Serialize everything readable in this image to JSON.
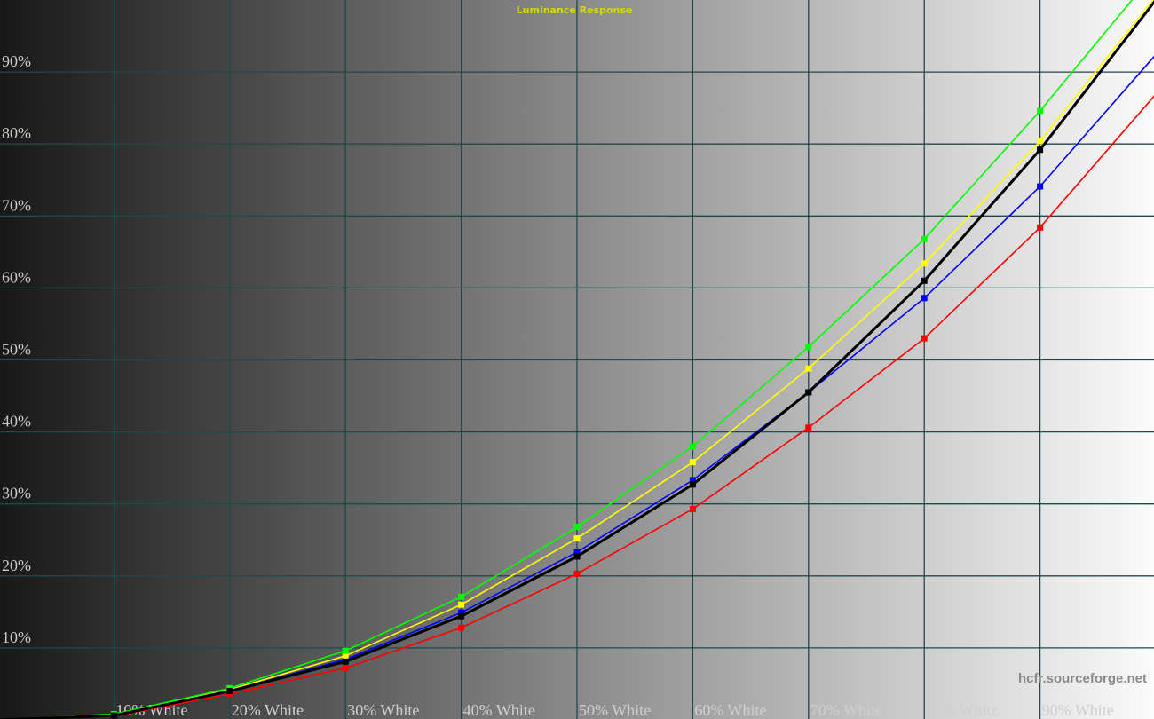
{
  "chart_data": {
    "type": "line",
    "title": "Luminance Response",
    "watermark": "hcfr.sourceforge.net",
    "x": [
      0,
      10,
      20,
      30,
      40,
      50,
      60,
      70,
      80,
      90,
      100
    ],
    "x_tick_labels": [
      "10% White",
      "20% White",
      "30% White",
      "40% White",
      "50% White",
      "60% White",
      "70% White",
      "80% White",
      "90% White"
    ],
    "x_tick_values": [
      10,
      20,
      30,
      40,
      50,
      60,
      70,
      80,
      90
    ],
    "y_tick_labels": [
      "10%",
      "20%",
      "30%",
      "40%",
      "50%",
      "60%",
      "70%",
      "80%",
      "90%"
    ],
    "y_tick_values": [
      10,
      20,
      30,
      40,
      50,
      60,
      70,
      80,
      90
    ],
    "xlim": [
      0,
      100
    ],
    "ylim": [
      0,
      100
    ],
    "grid": true,
    "grid_color": "#1e4a4a",
    "series": [
      {
        "color": "#ff0000",
        "values": [
          0,
          0.5,
          3.6,
          7.2,
          12.8,
          20.3,
          29.3,
          40.6,
          53.0,
          68.4,
          86.9
        ]
      },
      {
        "color": "#0000ff",
        "values": [
          0,
          0.6,
          4.0,
          8.4,
          14.9,
          23.3,
          33.3,
          45.5,
          58.6,
          74.1,
          92.4
        ]
      },
      {
        "color": "#ffff00",
        "values": [
          0,
          0.7,
          4.2,
          8.9,
          16.0,
          25.2,
          35.8,
          48.8,
          63.4,
          80.4,
          100.5
        ]
      },
      {
        "color": "#00ff00",
        "values": [
          0,
          0.8,
          4.4,
          9.6,
          17.1,
          26.8,
          38.0,
          51.8,
          66.8,
          84.6,
          104.0
        ]
      },
      {
        "color": "#000000",
        "values": [
          0,
          0.6,
          4.0,
          8.1,
          14.4,
          22.7,
          32.7,
          45.5,
          61.0,
          79.2,
          100.0
        ],
        "width": 3
      }
    ]
  }
}
